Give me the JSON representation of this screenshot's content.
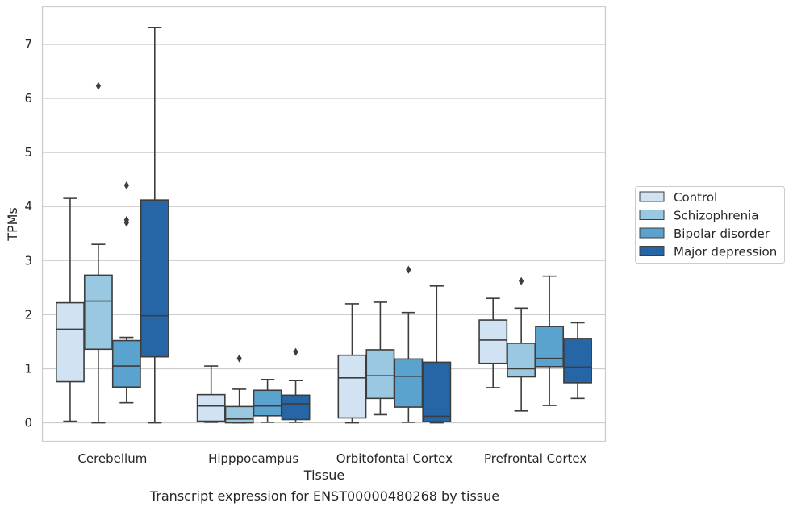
{
  "caption": "Transcript expression for ENST00000480268 by tissue",
  "chart_data": {
    "type": "box",
    "xlabel": "Tissue",
    "ylabel": "TPMs",
    "ylim": [
      -0.35,
      7.7
    ],
    "yticks": [
      0,
      1,
      2,
      3,
      4,
      5,
      6,
      7
    ],
    "grid": "horizontal",
    "legend_position": "right",
    "categories": [
      "Cerebellum",
      "Hipppocampus",
      "Orbitofontal Cortex",
      "Prefrontal Cortex"
    ],
    "series": [
      {
        "name": "Control",
        "color": "#d1e2f2",
        "boxes": [
          {
            "whislo": 0.03,
            "q1": 0.76,
            "med": 1.73,
            "q3": 2.22,
            "whishi": 4.15,
            "fliers": []
          },
          {
            "whislo": 0.01,
            "q1": 0.03,
            "med": 0.31,
            "q3": 0.52,
            "whishi": 1.05,
            "fliers": []
          },
          {
            "whislo": 0.0,
            "q1": 0.09,
            "med": 0.83,
            "q3": 1.25,
            "whishi": 2.2,
            "fliers": []
          },
          {
            "whislo": 0.65,
            "q1": 1.1,
            "med": 1.53,
            "q3": 1.9,
            "whishi": 2.3,
            "fliers": []
          }
        ]
      },
      {
        "name": "Schizophrenia",
        "color": "#9ac8e0",
        "boxes": [
          {
            "whislo": 0.0,
            "q1": 1.36,
            "med": 2.25,
            "q3": 2.73,
            "whishi": 3.3,
            "fliers": [
              6.23
            ]
          },
          {
            "whislo": 0.0,
            "q1": 0.0,
            "med": 0.07,
            "q3": 0.3,
            "whishi": 0.62,
            "fliers": [
              1.19
            ]
          },
          {
            "whislo": 0.15,
            "q1": 0.45,
            "med": 0.87,
            "q3": 1.35,
            "whishi": 2.23,
            "fliers": []
          },
          {
            "whislo": 0.22,
            "q1": 0.85,
            "med": 1.0,
            "q3": 1.47,
            "whishi": 2.12,
            "fliers": [
              2.62
            ]
          }
        ]
      },
      {
        "name": "Bipolar disorder",
        "color": "#5ba3cf",
        "boxes": [
          {
            "whislo": 0.37,
            "q1": 0.66,
            "med": 1.05,
            "q3": 1.52,
            "whishi": 1.58,
            "fliers": [
              4.39,
              3.75,
              3.7
            ]
          },
          {
            "whislo": 0.01,
            "q1": 0.13,
            "med": 0.31,
            "q3": 0.6,
            "whishi": 0.8,
            "fliers": []
          },
          {
            "whislo": 0.01,
            "q1": 0.29,
            "med": 0.86,
            "q3": 1.18,
            "whishi": 2.04,
            "fliers": [
              2.83
            ]
          },
          {
            "whislo": 0.32,
            "q1": 1.04,
            "med": 1.19,
            "q3": 1.78,
            "whishi": 2.71,
            "fliers": []
          }
        ]
      },
      {
        "name": "Major depression",
        "color": "#2666a6",
        "boxes": [
          {
            "whislo": 0.0,
            "q1": 1.22,
            "med": 1.98,
            "q3": 4.12,
            "whishi": 7.31,
            "fliers": []
          },
          {
            "whislo": 0.01,
            "q1": 0.06,
            "med": 0.35,
            "q3": 0.51,
            "whishi": 0.78,
            "fliers": [
              1.31
            ]
          },
          {
            "whislo": 0.0,
            "q1": 0.02,
            "med": 0.12,
            "q3": 1.12,
            "whishi": 2.53,
            "fliers": []
          },
          {
            "whislo": 0.45,
            "q1": 0.74,
            "med": 1.03,
            "q3": 1.56,
            "whishi": 1.85,
            "fliers": []
          }
        ]
      }
    ]
  }
}
